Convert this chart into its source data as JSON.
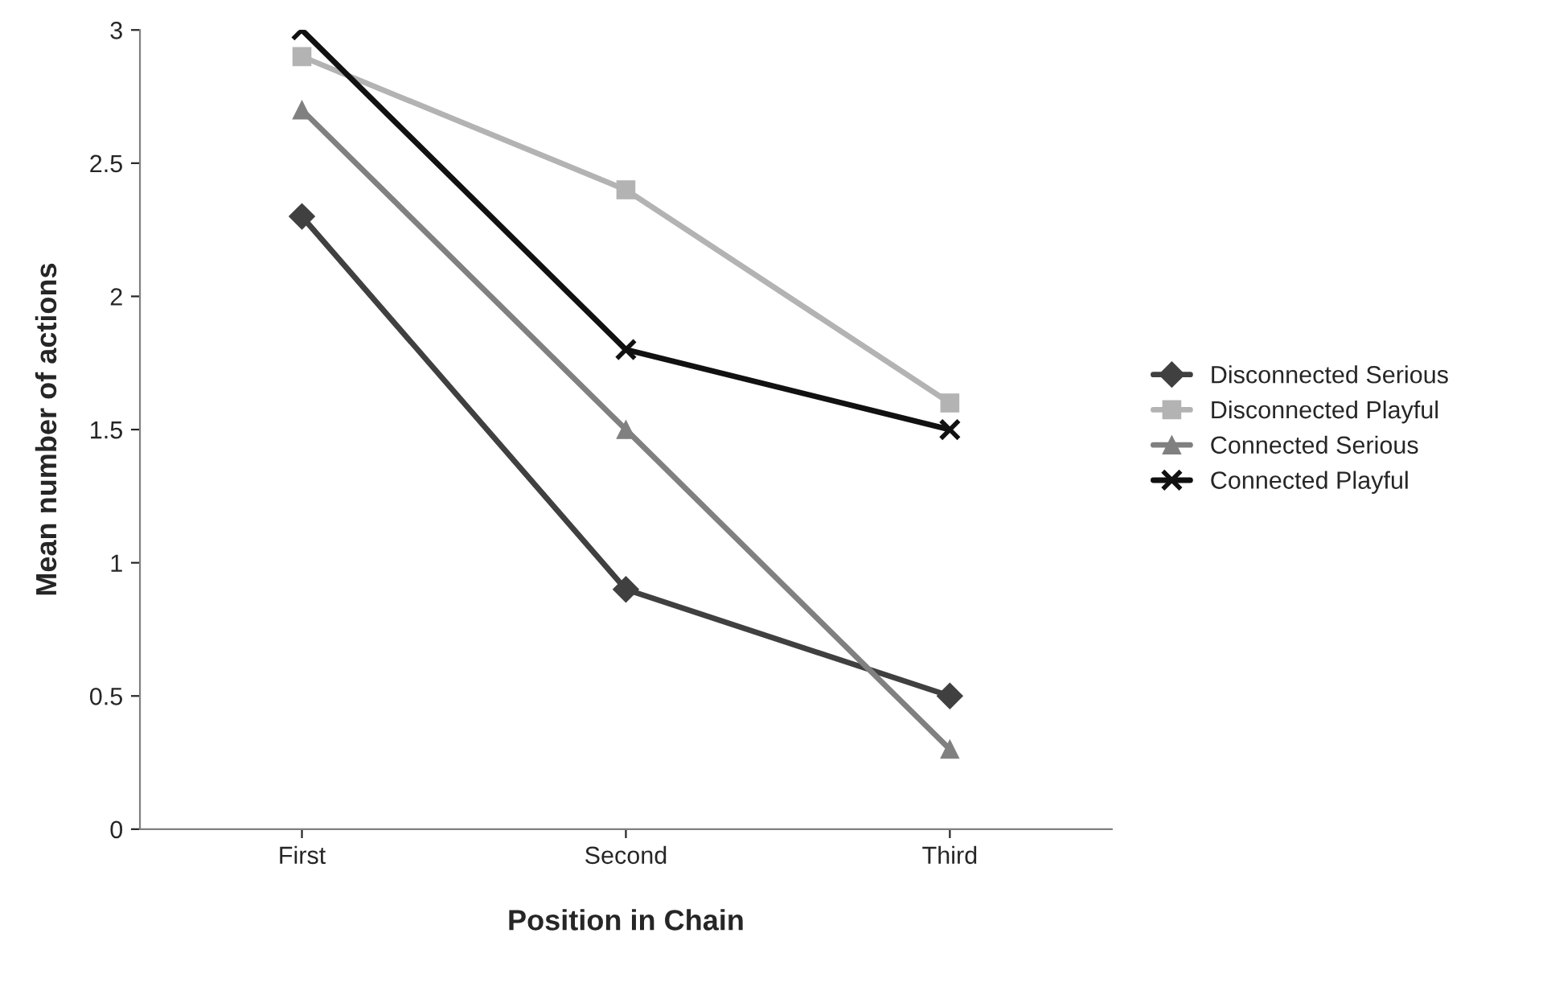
{
  "chart_data": {
    "type": "line",
    "xlabel": "Position in Chain",
    "ylabel": "Mean number of actions",
    "categories": [
      "First",
      "Second",
      "Third"
    ],
    "ylim": [
      0,
      3
    ],
    "yticks": [
      0,
      0.5,
      1,
      1.5,
      2,
      2.5,
      3
    ],
    "grid": false,
    "legend": "right",
    "series": [
      {
        "name": "Disconnected Serious",
        "color": "#404040",
        "marker": "diamond",
        "values": [
          2.3,
          0.9,
          0.5
        ]
      },
      {
        "name": "Disconnected Playful",
        "color": "#b3b3b3",
        "marker": "square",
        "values": [
          2.9,
          2.4,
          1.6
        ]
      },
      {
        "name": "Connected Serious",
        "color": "#808080",
        "marker": "triangle",
        "values": [
          2.7,
          1.5,
          0.3
        ]
      },
      {
        "name": "Connected Playful",
        "color": "#111111",
        "marker": "cross",
        "values": [
          3.0,
          1.8,
          1.5
        ]
      }
    ]
  }
}
